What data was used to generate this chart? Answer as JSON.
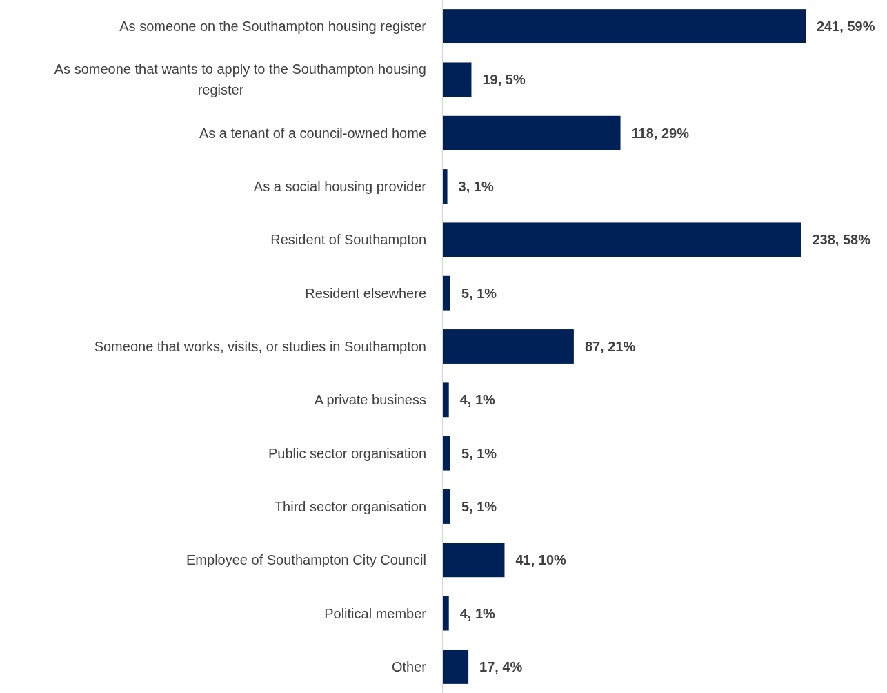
{
  "chart_data": {
    "type": "bar",
    "orientation": "horizontal",
    "tick_labels": "y",
    "color": "#002157",
    "categories": [
      "As someone on the Southampton housing register",
      "As someone that wants to apply to the Southampton housing register",
      "As a tenant of a council-owned home",
      "As a social housing provider",
      "Resident of Southampton",
      "Resident elsewhere",
      "Someone that works, visits, or studies in Southampton",
      "A private business",
      "Public sector organisation",
      "Third sector organisation",
      "Employee of Southampton City Council",
      "Political member",
      "Other"
    ],
    "values": [
      241,
      19,
      118,
      3,
      238,
      5,
      87,
      4,
      5,
      5,
      41,
      4,
      17
    ],
    "value_labels": [
      "241, 59%",
      "19, 5%",
      "118, 29%",
      "3, 1%",
      "238, 58%",
      "5, 1%",
      "87, 21%",
      "4, 1%",
      "5, 1%",
      "5, 1%",
      "41, 10%",
      "4, 1%",
      "17, 4%"
    ]
  }
}
